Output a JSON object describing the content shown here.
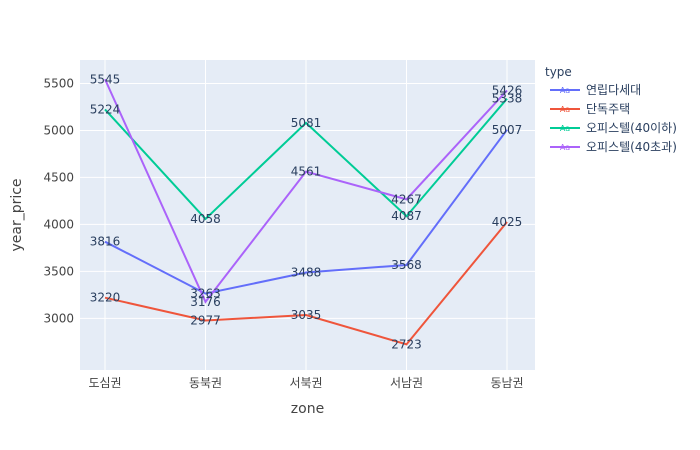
{
  "chart_data": {
    "type": "line",
    "xlabel": "zone",
    "ylabel": "year_price",
    "categories": [
      "도심권",
      "동북권",
      "서북권",
      "서남권",
      "동남권"
    ],
    "ylim": [
      2450,
      5750
    ],
    "yticks": [
      3000,
      3500,
      4000,
      4500,
      5000,
      5500
    ],
    "grid": true,
    "legend": {
      "title": "type",
      "position": "right",
      "symbol": "Aa"
    },
    "series": [
      {
        "name": "연립다세대",
        "color": "#636efa",
        "values": [
          3816,
          3263,
          3488,
          3568,
          5007
        ]
      },
      {
        "name": "단독주택",
        "color": "#EF553B",
        "values": [
          3220,
          2977,
          3035,
          2723,
          4025
        ]
      },
      {
        "name": "오피스텔(40이하)",
        "color": "#00cc96",
        "values": [
          5224,
          4058,
          5081,
          4087,
          5338
        ]
      },
      {
        "name": "오피스텔(40초과)",
        "color": "#ab63fa",
        "values": [
          5545,
          3176,
          4561,
          4267,
          5426
        ]
      }
    ]
  }
}
